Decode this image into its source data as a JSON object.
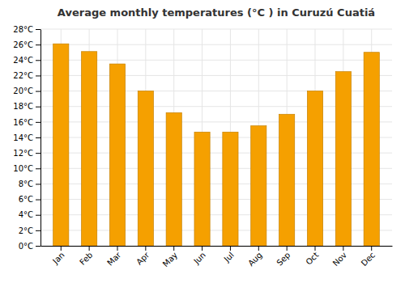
{
  "chart_data": {
    "type": "bar",
    "title": "Average monthly temperatures (°C ) in Curuzú Cuatiá",
    "categories": [
      "Jan",
      "Feb",
      "Mar",
      "Apr",
      "May",
      "Jun",
      "Jul",
      "Aug",
      "Sep",
      "Oct",
      "Nov",
      "Dec"
    ],
    "values": [
      26.1,
      25.1,
      23.5,
      20.0,
      17.2,
      14.7,
      14.7,
      15.5,
      17.0,
      20.0,
      22.5,
      25.0
    ],
    "color": "#F5A000",
    "ylim": [
      0,
      28
    ],
    "yticks": [
      {
        "value": 0,
        "label": "0°C"
      },
      {
        "value": 2,
        "label": "2°C"
      },
      {
        "value": 4,
        "label": "4°C"
      },
      {
        "value": 6,
        "label": "6°C"
      },
      {
        "value": 8,
        "label": "8°C"
      },
      {
        "value": 10,
        "label": "10°C"
      },
      {
        "value": 12,
        "label": "12°C"
      },
      {
        "value": 14,
        "label": "14°C"
      },
      {
        "value": 16,
        "label": "16°C"
      },
      {
        "value": 18,
        "label": "18°C"
      },
      {
        "value": 20,
        "label": "20°C"
      },
      {
        "value": 22,
        "label": "22°C"
      },
      {
        "value": 24,
        "label": "24°C"
      },
      {
        "value": 26,
        "label": "26°C"
      },
      {
        "value": 28,
        "label": "28°C"
      }
    ],
    "grid": true
  }
}
